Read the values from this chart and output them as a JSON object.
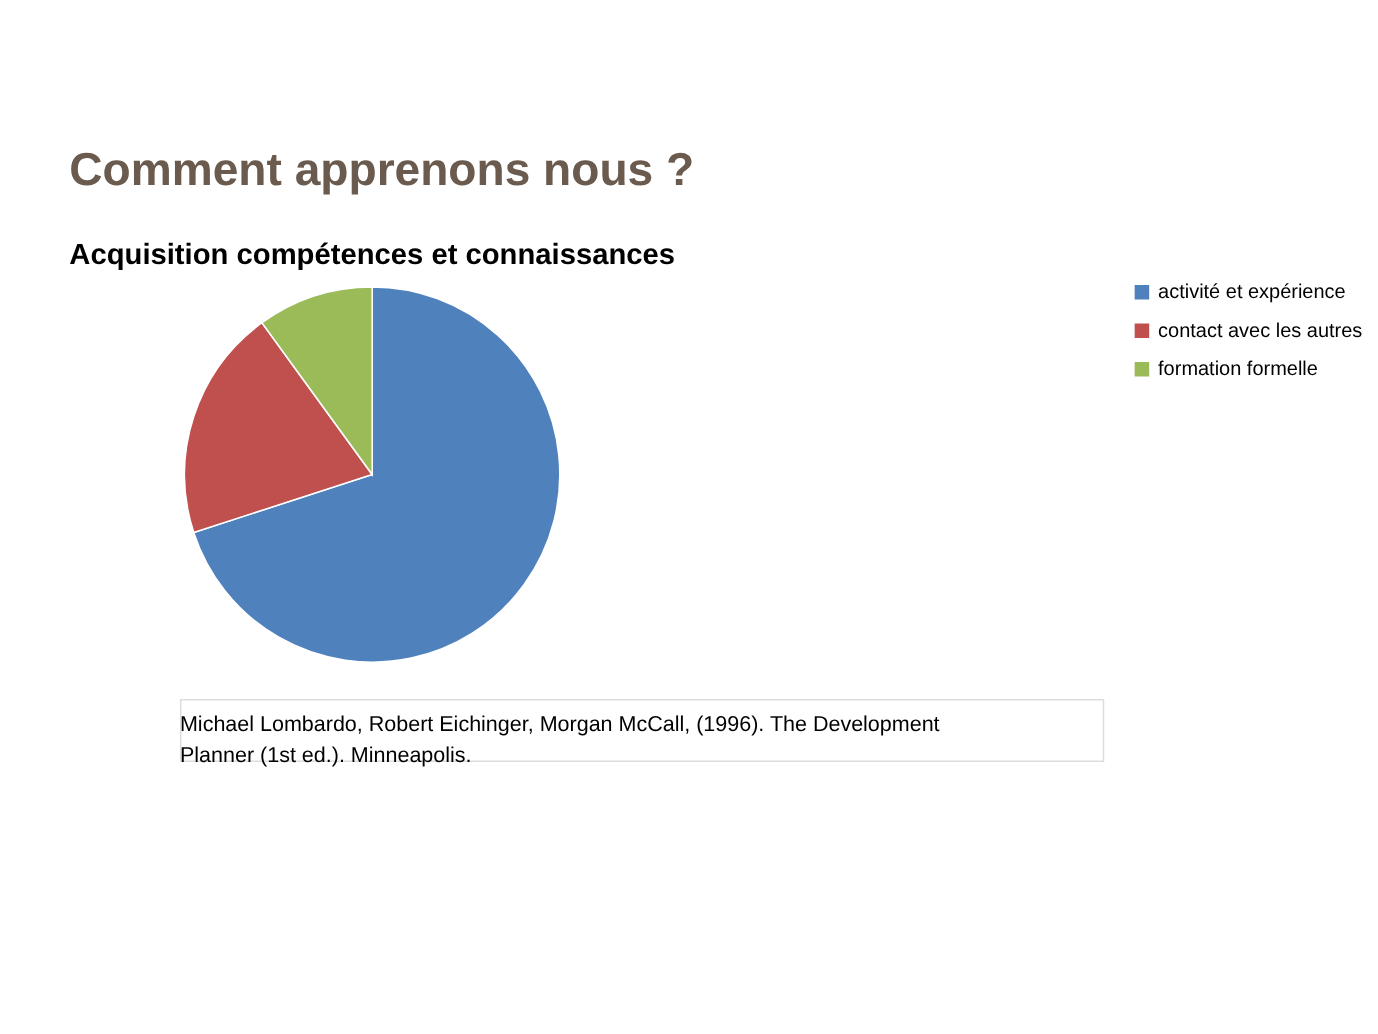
{
  "chart_data": {
    "type": "pie",
    "title": "Comment apprenons nous ?",
    "subtitle": "Acquisition compétences et connaissances",
    "categories": [
      "activité et expérience",
      "contact avec les autres",
      "formation formelle"
    ],
    "values": [
      70,
      20,
      10
    ],
    "colors": [
      "#4f81bd",
      "#c0504d",
      "#9bbb59"
    ],
    "legend": "right",
    "annotations": [
      "Michael Lombardo, Robert Eichinger,  Morgan McCall, (1996). The Development Planner  (1st ed.). Minneapolis."
    ]
  }
}
